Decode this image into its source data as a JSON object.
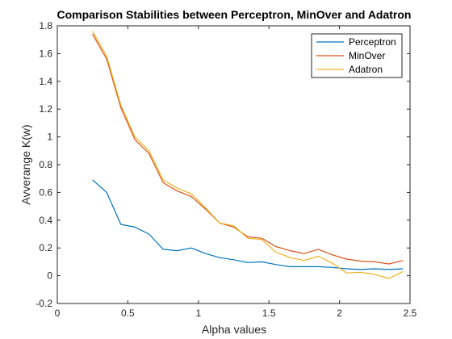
{
  "chart_data": {
    "type": "line",
    "title": "Comparison Stabilities between Perceptron, MinOver and Adatron",
    "xlabel": "Alpha values",
    "ylabel": "Avverange K(w)",
    "xlim": [
      0,
      2.5
    ],
    "ylim": [
      -0.2,
      1.8
    ],
    "xticks": [
      0,
      0.5,
      1,
      1.5,
      2,
      2.5
    ],
    "yticks": [
      -0.2,
      0,
      0.2,
      0.4,
      0.6,
      0.8,
      1,
      1.2,
      1.4,
      1.6,
      1.8
    ],
    "xtick_labels": [
      "0",
      "0.5",
      "1",
      "1.5",
      "2",
      "2.5"
    ],
    "ytick_labels": [
      "-0.2",
      "0",
      "0.2",
      "0.4",
      "0.6",
      "0.8",
      "1",
      "1.2",
      "1.4",
      "1.6",
      "1.8"
    ],
    "grid": false,
    "legend_position": "top-right",
    "x": [
      0.25,
      0.35,
      0.45,
      0.55,
      0.65,
      0.75,
      0.85,
      0.95,
      1.05,
      1.15,
      1.25,
      1.35,
      1.45,
      1.55,
      1.65,
      1.75,
      1.85,
      1.95,
      2.05,
      2.15,
      2.25,
      2.35,
      2.45
    ],
    "series": [
      {
        "name": "Perceptron",
        "color": "#0072BD",
        "values": [
          0.69,
          0.6,
          0.37,
          0.35,
          0.3,
          0.19,
          0.18,
          0.2,
          0.16,
          0.13,
          0.115,
          0.095,
          0.1,
          0.08,
          0.065,
          0.065,
          0.065,
          0.06,
          0.05,
          0.045,
          0.05,
          0.045,
          0.05
        ]
      },
      {
        "name": "MinOver",
        "color": "#D95319",
        "values": [
          1.74,
          1.56,
          1.21,
          0.98,
          0.88,
          0.67,
          0.61,
          0.57,
          0.48,
          0.38,
          0.35,
          0.28,
          0.27,
          0.21,
          0.18,
          0.16,
          0.19,
          0.15,
          0.12,
          0.105,
          0.1,
          0.085,
          0.11
        ]
      },
      {
        "name": "Adatron",
        "color": "#EDB120",
        "values": [
          1.76,
          1.58,
          1.23,
          1.0,
          0.9,
          0.69,
          0.63,
          0.59,
          0.49,
          0.38,
          0.36,
          0.27,
          0.26,
          0.17,
          0.13,
          0.11,
          0.14,
          0.09,
          0.02,
          0.025,
          0.01,
          -0.02,
          0.03
        ]
      }
    ]
  }
}
